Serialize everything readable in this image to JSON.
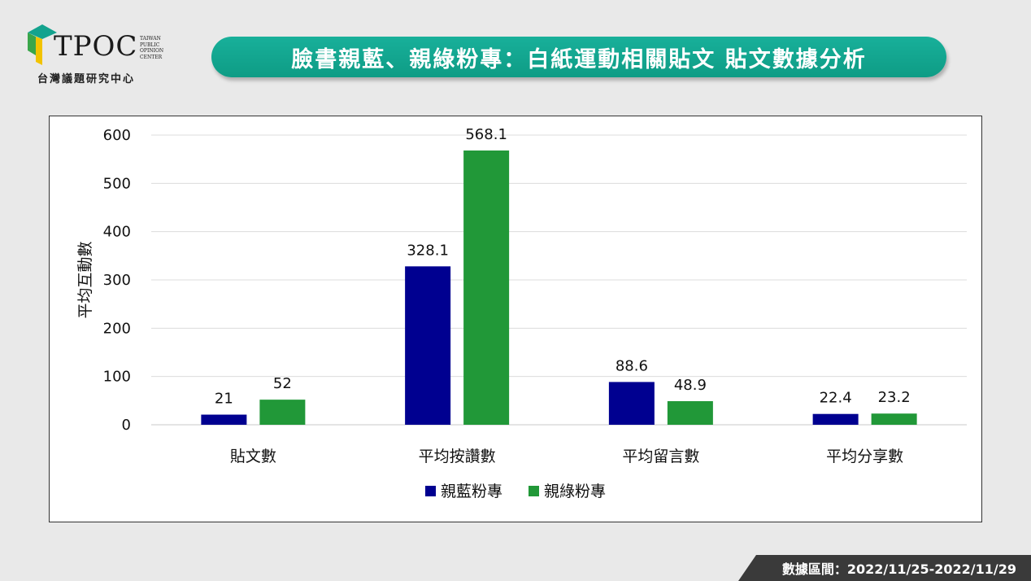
{
  "logo": {
    "wordmark": "TPOC",
    "side_lines": [
      "TAIWAN",
      "PUBLIC",
      "OPINION",
      "CENTER"
    ],
    "subtitle": "台灣議題研究中心",
    "colors": {
      "teal": "#14a38e",
      "green": "#3aa64a",
      "yellow": "#f2c300"
    }
  },
  "title": "臉書親藍、親綠粉專：白紙運動相關貼文 貼文數據分析",
  "footer": "數據區間：2022/11/25-2022/11/29",
  "chart_data": {
    "type": "bar",
    "categories": [
      "貼文數",
      "平均按讚數",
      "平均留言數",
      "平均分享數"
    ],
    "series": [
      {
        "name": "親藍粉專",
        "color": "#000090",
        "values": [
          21,
          328.1,
          88.6,
          22.4
        ],
        "labels": [
          "21",
          "328.1",
          "88.6",
          "22.4"
        ]
      },
      {
        "name": "親綠粉專",
        "color": "#219838",
        "values": [
          52,
          568.1,
          48.9,
          23.2
        ],
        "labels": [
          "52",
          "568.1",
          "48.9",
          "23.2"
        ]
      }
    ],
    "ylabel": "平均互動數",
    "ylim": [
      0,
      600
    ],
    "yticks": [
      0,
      100,
      200,
      300,
      400,
      500,
      600
    ],
    "grid": true,
    "legend": "bottom"
  }
}
